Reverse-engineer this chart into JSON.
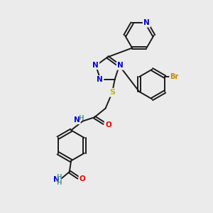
{
  "bg_color": "#ebebeb",
  "bond_color": "#1a1a1a",
  "N_color": "#0000dd",
  "S_color": "#bbbb00",
  "O_color": "#ee0000",
  "Br_color": "#cc8800",
  "H_color": "#559999",
  "lw": 1.4,
  "font_size": 7.5,
  "xlim": [
    0,
    10
  ],
  "ylim": [
    0,
    10
  ]
}
